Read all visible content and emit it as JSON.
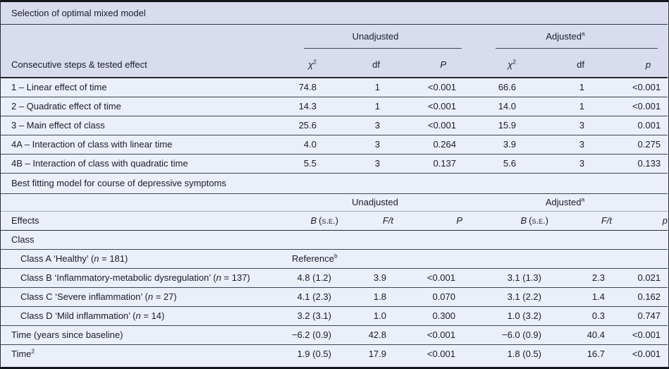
{
  "colors": {
    "header_band": "#d8dcee",
    "row_background": "#ebeff7",
    "rule_dark": "#40455a",
    "outer_border": "#15161c"
  },
  "group": {
    "unadjusted": "Unadjusted",
    "adjusted": "Adjusted",
    "adjusted_sup": "a"
  },
  "table1": {
    "section_title": "Selection of optimal mixed model",
    "headers": {
      "label": "Consecutive steps & tested effect",
      "chi": "χ",
      "chi_sup": "2",
      "df": "df",
      "P": "P",
      "p": "p"
    },
    "rows": [
      {
        "label": "1 – Linear effect of time",
        "uchi": "74.8",
        "udf": "1",
        "up": "<0.001",
        "achi": "66.6",
        "adf": "1",
        "ap": "<0.001"
      },
      {
        "label": "2 – Quadratic effect of time",
        "uchi": "14.3",
        "udf": "1",
        "up": "<0.001",
        "achi": "14.0",
        "adf": "1",
        "ap": "<0.001"
      },
      {
        "label": "3 – Main effect of class",
        "uchi": "25.6",
        "udf": "3",
        "up": "<0.001",
        "achi": "15.9",
        "adf": "3",
        "ap": "0.001"
      },
      {
        "label": "4A – Interaction of class with linear time",
        "uchi": "4.0",
        "udf": "3",
        "up": "0.264",
        "achi": "3.9",
        "adf": "3",
        "ap": "0.275"
      },
      {
        "label": "4B – Interaction of class with quadratic time",
        "uchi": "5.5",
        "udf": "3",
        "up": "0.137",
        "achi": "5.6",
        "adf": "3",
        "ap": "0.133"
      }
    ]
  },
  "table2": {
    "section_title": "Best fitting model for course of depressive symptoms",
    "headers": {
      "label": "Effects",
      "B": "B",
      "se": "(s.e.)",
      "ft": "F/t",
      "P": "P",
      "p": "p"
    },
    "rows": [
      {
        "label": "Class"
      },
      {
        "pre": "Class A ‘Healthy’ (",
        "n": "n",
        "post": " = 181)",
        "reference": "Reference",
        "ref_sup": "b"
      },
      {
        "pre": "Class B ‘Inflammatory-metabolic dysregulation’ (",
        "n": "n",
        "post": " = 137)",
        "ub": "4.8 (1.2)",
        "uft": "3.9",
        "up": "<0.001",
        "ab": "3.1 (1.3)",
        "aft": "2.3",
        "ap": "0.021"
      },
      {
        "pre": "Class C ‘Severe inflammation’ (",
        "n": "n",
        "post": " = 27)",
        "ub": "4.1 (2.3)",
        "uft": "1.8",
        "up": "0.070",
        "ab": "3.1 (2.2)",
        "aft": "1.4",
        "ap": "0.162"
      },
      {
        "pre": "Class D ‘Mild inflammation’ (",
        "n": "n",
        "post": " = 14)",
        "ub": "3.2 (3.1)",
        "uft": "1.0",
        "up": "0.300",
        "ab": "1.0 (3.2)",
        "aft": "0.3",
        "ap": "0.747"
      },
      {
        "label": "Time (years since baseline)",
        "ub": "−6.2 (0.9)",
        "uft": "42.8",
        "up": "<0.001",
        "ab": "−6.0 (0.9)",
        "aft": "40.4",
        "ap": "<0.001"
      },
      {
        "label": "Time",
        "label_sup": "2",
        "ub": "1.9 (0.5)",
        "uft": "17.9",
        "up": "<0.001",
        "ab": "1.8 (0.5)",
        "aft": "16.7",
        "ap": "<0.001"
      }
    ]
  }
}
